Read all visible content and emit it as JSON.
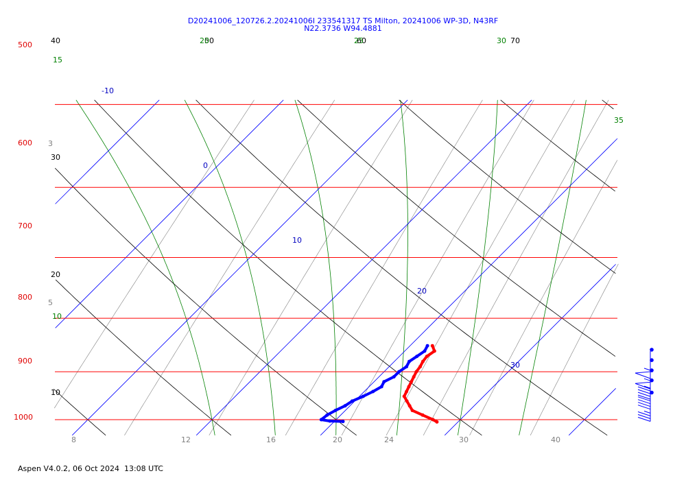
{
  "header": {
    "line1": "D20241006_120726.2.20241006I 233541317 TS Milton, 20241006 WP-3D, N43RF",
    "line2": "N22.3736 W94.4881"
  },
  "footer": {
    "text": "Aspen V4.0.2, 06 Oct 2024  13:08 UTC"
  },
  "colors": {
    "isobar": "#ff0000",
    "isotherm": "#0000ff",
    "dry_adiabat": "#000000",
    "moist_adiabat": "#008000",
    "mixing_ratio": "#808080",
    "temperature_trace": "#ff0000",
    "dewpoint_trace": "#0000ff",
    "wind_barb": "#0000ff"
  },
  "chart_data": {
    "type": "skew-t log-p",
    "title": "D20241006_120726.2.20241006I 233541317 TS Milton, 20241006 WP-3D, N43RF",
    "subtitle": "N22.3736 W94.4881",
    "pressure_range_hpa": [
      1035,
      495
    ],
    "temperature_range_c": [
      -5,
      40
    ],
    "log_pressure": true,
    "pressure_ticks": [
      "500",
      "600",
      "700",
      "800",
      "900",
      "1000"
    ],
    "isotherm_labels": [
      "-10",
      "0",
      "10",
      "20",
      "30"
    ],
    "dry_adiabat_labels": [
      "40",
      "50",
      "60",
      "70",
      "30",
      "20",
      "10"
    ],
    "moist_adiabat_labels": [
      "15",
      "20",
      "25",
      "30",
      "35",
      "10"
    ],
    "mixing_ratio_labels": [
      "8",
      "12",
      "16",
      "20",
      "24",
      "30",
      "40",
      "3",
      "5"
    ],
    "temperature_profile": [
      {
        "p": 850,
        "t": 21.8
      },
      {
        "p": 860,
        "t": 22.4
      },
      {
        "p": 870,
        "t": 22.2
      },
      {
        "p": 880,
        "t": 22.3
      },
      {
        "p": 890,
        "t": 22.5
      },
      {
        "p": 900,
        "t": 22.6
      },
      {
        "p": 910,
        "t": 22.8
      },
      {
        "p": 920,
        "t": 23.0
      },
      {
        "p": 930,
        "t": 23.2
      },
      {
        "p": 940,
        "t": 23.4
      },
      {
        "p": 950,
        "t": 23.6
      },
      {
        "p": 960,
        "t": 24.2
      },
      {
        "p": 970,
        "t": 24.8
      },
      {
        "p": 980,
        "t": 25.4
      },
      {
        "p": 990,
        "t": 26.6
      },
      {
        "p": 1000,
        "t": 27.8
      },
      {
        "p": 1005,
        "t": 28.3
      }
    ],
    "dewpoint_profile": [
      {
        "p": 850,
        "td": 21.4
      },
      {
        "p": 860,
        "td": 21.6
      },
      {
        "p": 870,
        "td": 21.4
      },
      {
        "p": 880,
        "td": 21.2
      },
      {
        "p": 890,
        "td": 21.4
      },
      {
        "p": 900,
        "td": 21.2
      },
      {
        "p": 910,
        "td": 21.2
      },
      {
        "p": 920,
        "td": 20.8
      },
      {
        "p": 930,
        "td": 21.0
      },
      {
        "p": 940,
        "td": 20.7
      },
      {
        "p": 950,
        "td": 20.3
      },
      {
        "p": 960,
        "td": 19.8
      },
      {
        "p": 970,
        "td": 19.6
      },
      {
        "p": 980,
        "td": 19.2
      },
      {
        "p": 990,
        "td": 18.9
      },
      {
        "p": 1000,
        "td": 18.8
      },
      {
        "p": 1003,
        "td": 19.6
      },
      {
        "p": 1004,
        "td": 20.7
      }
    ],
    "wind_barbs": [
      {
        "p": 860,
        "speed_kt": 55
      },
      {
        "p": 880,
        "speed_kt": 55
      },
      {
        "p": 900,
        "speed_kt": 45
      },
      {
        "p": 920,
        "speed_kt": 40
      },
      {
        "p": 945,
        "speed_kt": 35
      }
    ]
  }
}
